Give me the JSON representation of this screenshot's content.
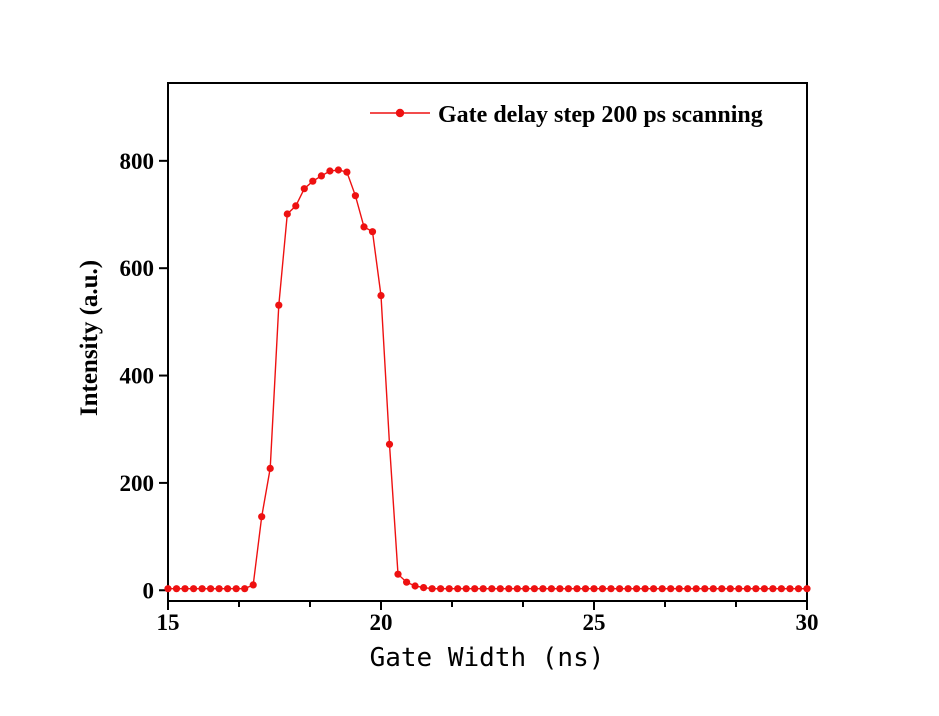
{
  "chart_data": {
    "type": "line",
    "title": "",
    "xlabel": "Gate Width (ns)",
    "ylabel": "Intensity (a.u.)",
    "xlim": [
      15,
      30
    ],
    "ylim": [
      -20,
      945
    ],
    "x_major_ticks": [
      15,
      20,
      25,
      30
    ],
    "x_minor_ticks": [
      16.667,
      18.333,
      21.667,
      23.333,
      26.667,
      28.333
    ],
    "y_major_ticks": [
      0,
      200,
      400,
      600,
      800
    ],
    "grid": false,
    "axis_color": "#000000",
    "legend": {
      "position": "top-inside",
      "entries": [
        {
          "label": "Gate delay step 200 ps scanning",
          "color": "#ee1111",
          "marker": "dot-on-line"
        }
      ]
    },
    "series": [
      {
        "name": "Gate delay step 200 ps scanning",
        "color": "#ee1111",
        "marker": "circle",
        "marker_radius": 3.6,
        "x": [
          15.0,
          15.2,
          15.4,
          15.6,
          15.8,
          16.0,
          16.2,
          16.4,
          16.6,
          16.8,
          17.0,
          17.2,
          17.4,
          17.6,
          17.8,
          18.0,
          18.2,
          18.4,
          18.6,
          18.8,
          19.0,
          19.2,
          19.4,
          19.6,
          19.8,
          20.0,
          20.2,
          20.4,
          20.6,
          20.8,
          21.0,
          21.2,
          21.4,
          21.6,
          21.8,
          22.0,
          22.2,
          22.4,
          22.6,
          22.8,
          23.0,
          23.2,
          23.4,
          23.6,
          23.8,
          24.0,
          24.2,
          24.4,
          24.6,
          24.8,
          25.0,
          25.2,
          25.4,
          25.6,
          25.8,
          26.0,
          26.2,
          26.4,
          26.6,
          26.8,
          27.0,
          27.2,
          27.4,
          27.6,
          27.8,
          28.0,
          28.2,
          28.4,
          28.6,
          28.8,
          29.0,
          29.2,
          29.4,
          29.6,
          29.8,
          30.0
        ],
        "y": [
          3,
          3,
          3,
          3,
          3,
          3,
          3,
          3,
          3,
          3,
          10,
          137,
          227,
          531,
          701,
          716,
          748,
          762,
          772,
          781,
          783,
          779,
          735,
          677,
          668,
          549,
          272,
          30,
          15,
          8,
          5,
          3,
          3,
          3,
          3,
          3,
          3,
          3,
          3,
          3,
          3,
          3,
          3,
          3,
          3,
          3,
          3,
          3,
          3,
          3,
          3,
          3,
          3,
          3,
          3,
          3,
          3,
          3,
          3,
          3,
          3,
          3,
          3,
          3,
          3,
          3,
          3,
          3,
          3,
          3,
          3,
          3,
          3,
          3,
          3,
          3
        ]
      }
    ]
  }
}
